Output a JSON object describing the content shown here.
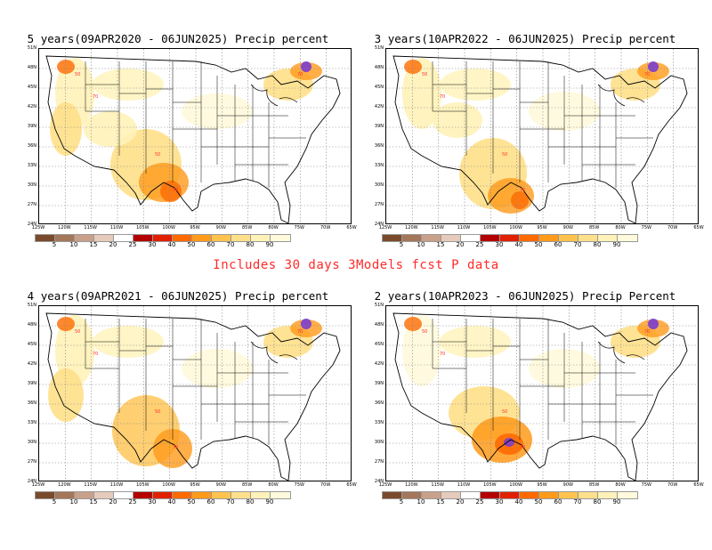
{
  "banner": "Includes 30 days 3Models fcst P data",
  "panels": [
    {
      "title": "5 years(09APR2020 - 06JUN2025) Precip percent"
    },
    {
      "title": "3 years(10APR2022 - 06JUN2025) Precip percent"
    },
    {
      "title": "4 years(09APR2021 - 06JUN2025) Precip percent"
    },
    {
      "title": "2 years(10APR2023 - 06JUN2025) Precip Percent"
    }
  ],
  "lat_labels": [
    "51N",
    "48N",
    "45N",
    "42N",
    "39N",
    "36N",
    "33N",
    "30N",
    "27N",
    "24N"
  ],
  "lon_labels": [
    "125W",
    "120W",
    "115W",
    "110W",
    "105W",
    "100W",
    "95W",
    "90W",
    "85W",
    "80W",
    "75W",
    "70W",
    "65W"
  ],
  "colorbar": {
    "ticks": [
      "5",
      "10",
      "15",
      "20",
      "25",
      "30",
      "40",
      "50",
      "60",
      "70",
      "80",
      "90"
    ],
    "colors": [
      "#7a4a2c",
      "#a4765a",
      "#c9a08a",
      "#e6cbbc",
      "#ffffff",
      "#b40000",
      "#e02000",
      "#ff6a00",
      "#ff9a1a",
      "#ffc34d",
      "#ffe08a",
      "#fff2b8",
      "#fffadc"
    ]
  },
  "contour_labels": [
    "70",
    "50",
    "70",
    "50",
    "70"
  ]
}
